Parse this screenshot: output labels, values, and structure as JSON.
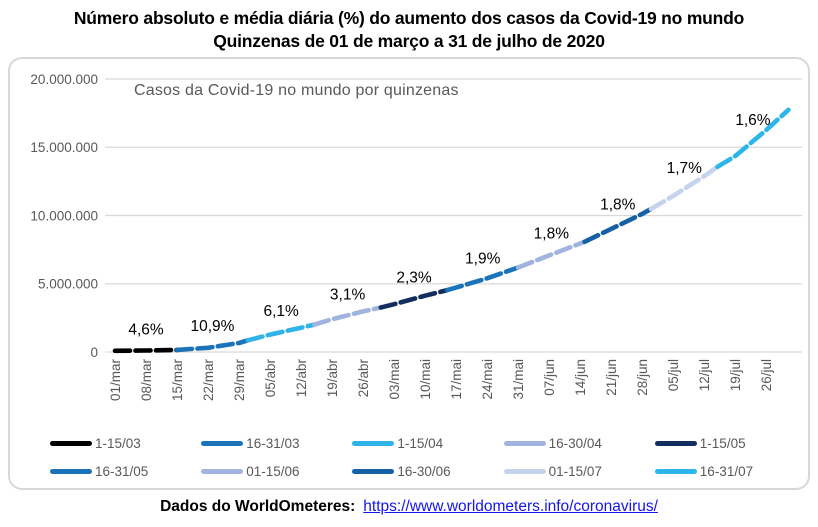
{
  "page": {
    "title_line1": "Número absoluto e média diária (%) do aumento dos casos da Covid-19 no mundo",
    "title_line2": "Quinzenas de 01 de março a 31 de julho de 2020",
    "footer_label": "Dados do WorldOmeteres:",
    "footer_link": "https://www.worldometers.info/coronavirus/",
    "link_color": "#1414f0"
  },
  "chart_data": {
    "type": "line",
    "title": "Casos da Covid-19 no mundo por quinzenas",
    "legend_position": "bottom",
    "grid": true,
    "grid_color": "#d9d9d9",
    "axis_label_color": "#595959",
    "data_label_color": "#000000",
    "y_axis": {
      "min": 0,
      "max": 20000000,
      "ticks": [
        {
          "label": "20.000.000",
          "value": 20000000
        },
        {
          "label": "15.000.000",
          "value": 15000000
        },
        {
          "label": "10.000.000",
          "value": 10000000
        },
        {
          "label": "5.000.000",
          "value": 5000000
        },
        {
          "label": "0",
          "value": 0
        }
      ]
    },
    "x_axis": {
      "unit": "days_since_01_mar",
      "tick_interval_days": 7,
      "total_days": 152,
      "labels": [
        "01/mar",
        "08/mar",
        "15/mar",
        "22/mar",
        "29/mar",
        "05/abr",
        "12/abr",
        "19/abr",
        "26/abr",
        "03/mai",
        "10/mai",
        "17/mai",
        "24/mai",
        "31/mai",
        "07/jun",
        "14/jun",
        "21/jun",
        "28/jun",
        "05/jul",
        "12/jul",
        "19/jul",
        "26/jul"
      ]
    },
    "series": [
      {
        "name": "1-15/03",
        "color": "#000000",
        "daily_avg_label": "4,6%",
        "points": [
          [
            0,
            88000
          ],
          [
            7,
            107000
          ],
          [
            14,
            157000
          ]
        ]
      },
      {
        "name": "16-31/03",
        "color": "#1b73ba",
        "daily_avg_label": "10,9%",
        "points": [
          [
            14,
            157000
          ],
          [
            21,
            305000
          ],
          [
            28,
            663000
          ],
          [
            30,
            858000
          ]
        ]
      },
      {
        "name": "1-15/04",
        "color": "#2fb3e8",
        "daily_avg_label": "6,1%",
        "points": [
          [
            30,
            858000
          ],
          [
            35,
            1273000
          ],
          [
            42,
            1781000
          ],
          [
            45,
            2010000
          ]
        ]
      },
      {
        "name": "16-30/04",
        "color": "#a0b4df",
        "daily_avg_label": "3,1%",
        "points": [
          [
            45,
            2010000
          ],
          [
            49,
            2402000
          ],
          [
            56,
            2972000
          ],
          [
            60,
            3257000
          ]
        ]
      },
      {
        "name": "1-15/05",
        "color": "#122d5e",
        "daily_avg_label": "2,3%",
        "points": [
          [
            60,
            3257000
          ],
          [
            63,
            3504000
          ],
          [
            70,
            4128000
          ],
          [
            75,
            4535000
          ]
        ]
      },
      {
        "name": "16-31/05",
        "color": "#1b73ba",
        "daily_avg_label": "1,9%",
        "points": [
          [
            75,
            4535000
          ],
          [
            77,
            4717000
          ],
          [
            84,
            5398000
          ],
          [
            91,
            6194000
          ]
        ]
      },
      {
        "name": "01-15/06",
        "color": "#a0b4df",
        "daily_avg_label": "1,8%",
        "points": [
          [
            91,
            6194000
          ],
          [
            98,
            7077000
          ],
          [
            105,
            7948000
          ],
          [
            106,
            8070000
          ]
        ]
      },
      {
        "name": "16-30/06",
        "color": "#1660a8",
        "daily_avg_label": "1,8%",
        "points": [
          [
            106,
            8070000
          ],
          [
            112,
            9015000
          ],
          [
            119,
            10117000
          ],
          [
            121,
            10475000
          ]
        ]
      },
      {
        "name": "01-15/07",
        "color": "#c5d3ec",
        "daily_avg_label": "1,7%",
        "points": [
          [
            121,
            10475000
          ],
          [
            126,
            11434000
          ],
          [
            133,
            12879000
          ],
          [
            136,
            13571000
          ]
        ]
      },
      {
        "name": "16-31/07",
        "color": "#2cb5ea",
        "daily_avg_label": "1,6%",
        "points": [
          [
            136,
            13571000
          ],
          [
            140,
            14348000
          ],
          [
            147,
            16260000
          ],
          [
            152,
            17740000
          ]
        ]
      }
    ]
  }
}
